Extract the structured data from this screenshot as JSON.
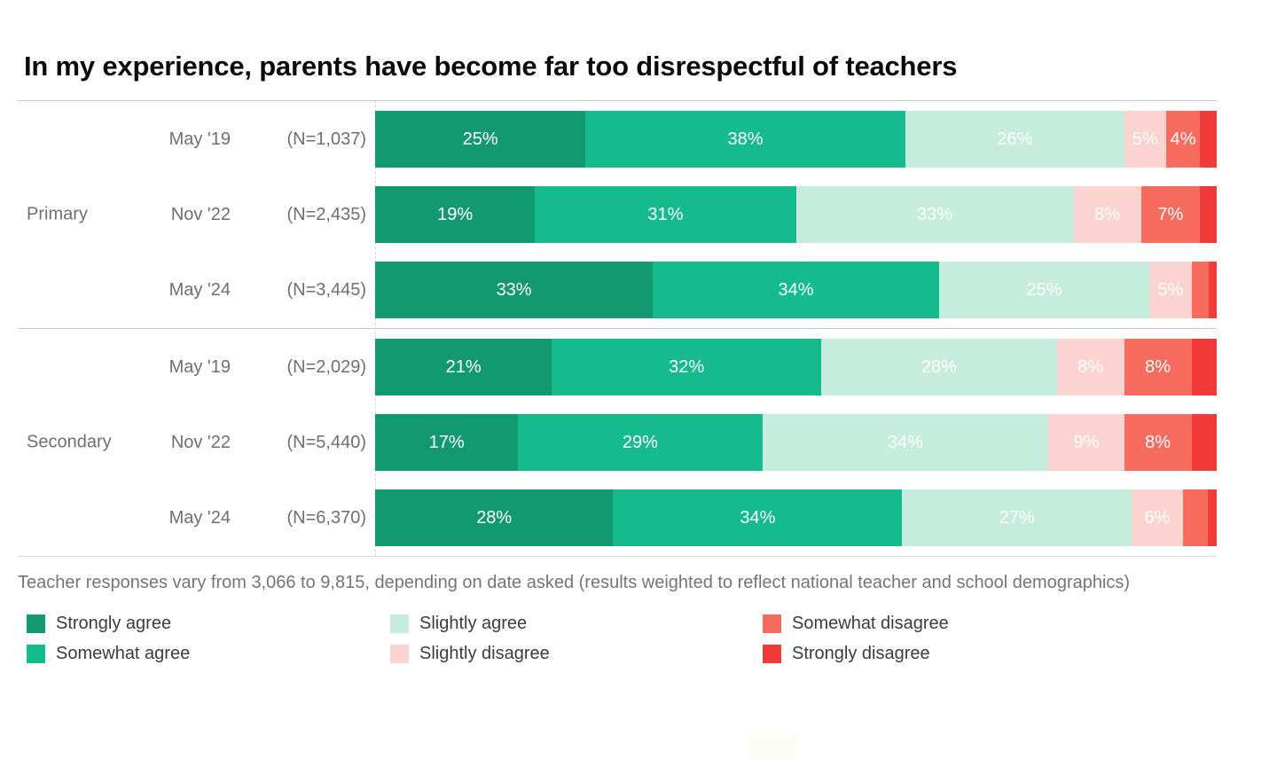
{
  "title": "In my experience, parents have become far too disrespectful of teachers",
  "footnote": "Teacher responses vary from 3,066 to 9,815, depending on date asked (results weighted to reflect national teacher and school demographics)",
  "legend": [
    {
      "key": "strongly-agree",
      "label": "Strongly agree",
      "color": "#13996f"
    },
    {
      "key": "somewhat-agree",
      "label": "Somewhat agree",
      "color": "#15bb8d"
    },
    {
      "key": "slightly-agree",
      "label": "Slightly agree",
      "color": "#c5ecdc"
    },
    {
      "key": "slightly-disagree",
      "label": "Slightly disagree",
      "color": "#fbd3d0"
    },
    {
      "key": "somewhat-disagree",
      "label": "Somewhat disagree",
      "color": "#f76c5e"
    },
    {
      "key": "strongly-disagree",
      "label": "Strongly disagree",
      "color": "#f13b3b"
    }
  ],
  "groups": [
    {
      "label": "Primary",
      "rows": [
        {
          "date": "May '19",
          "n": "(N=1,037)",
          "values": [
            25,
            38,
            26,
            5,
            4,
            2
          ],
          "labels": [
            "25%",
            "38%",
            "26%",
            "5%",
            "4%",
            ""
          ]
        },
        {
          "date": "Nov '22",
          "n": "(N=2,435)",
          "values": [
            19,
            31,
            33,
            8,
            7,
            2
          ],
          "labels": [
            "19%",
            "31%",
            "33%",
            "8%",
            "7%",
            ""
          ]
        },
        {
          "date": "May '24",
          "n": "(N=3,445)",
          "values": [
            33,
            34,
            25,
            5,
            2,
            1
          ],
          "labels": [
            "33%",
            "34%",
            "25%",
            "5%",
            "",
            ""
          ]
        }
      ]
    },
    {
      "label": "Secondary",
      "rows": [
        {
          "date": "May '19",
          "n": "(N=2,029)",
          "values": [
            21,
            32,
            28,
            8,
            8,
            3
          ],
          "labels": [
            "21%",
            "32%",
            "28%",
            "8%",
            "8%",
            ""
          ]
        },
        {
          "date": "Nov '22",
          "n": "(N=5,440)",
          "values": [
            17,
            29,
            34,
            9,
            8,
            3
          ],
          "labels": [
            "17%",
            "29%",
            "34%",
            "9%",
            "8%",
            ""
          ]
        },
        {
          "date": "May '24",
          "n": "(N=6,370)",
          "values": [
            28,
            34,
            27,
            6,
            3,
            1
          ],
          "labels": [
            "28%",
            "34%",
            "27%",
            "6%",
            "",
            ""
          ]
        }
      ]
    }
  ],
  "chart_data": {
    "type": "bar",
    "stacked": true,
    "orientation": "horizontal",
    "title": "In my experience, parents have become far too disrespectful of teachers",
    "categories": [
      "Primary May '19 (N=1,037)",
      "Primary Nov '22 (N=2,435)",
      "Primary May '24 (N=3,445)",
      "Secondary May '19 (N=2,029)",
      "Secondary Nov '22 (N=5,440)",
      "Secondary May '24 (N=6,370)"
    ],
    "series": [
      {
        "name": "Strongly agree",
        "color": "#13996f",
        "values": [
          25,
          19,
          33,
          21,
          17,
          28
        ]
      },
      {
        "name": "Somewhat agree",
        "color": "#15bb8d",
        "values": [
          38,
          31,
          34,
          32,
          29,
          34
        ]
      },
      {
        "name": "Slightly agree",
        "color": "#c5ecdc",
        "values": [
          26,
          33,
          25,
          28,
          34,
          27
        ]
      },
      {
        "name": "Slightly disagree",
        "color": "#fbd3d0",
        "values": [
          5,
          8,
          5,
          8,
          9,
          6
        ]
      },
      {
        "name": "Somewhat disagree",
        "color": "#f76c5e",
        "values": [
          4,
          7,
          2,
          8,
          8,
          3
        ]
      },
      {
        "name": "Strongly disagree",
        "color": "#f13b3b",
        "values": [
          2,
          2,
          1,
          3,
          3,
          1
        ]
      }
    ],
    "unit": "%",
    "xlim": [
      0,
      100
    ],
    "grid": false,
    "legend_position": "bottom",
    "data_label_min_shown": 4
  }
}
